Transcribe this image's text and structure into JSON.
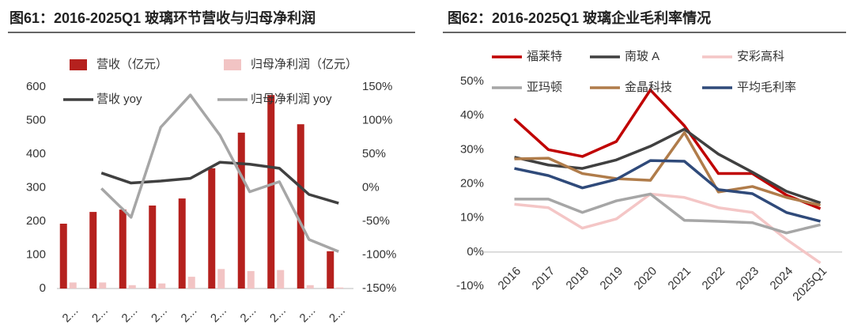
{
  "chart_data": [
    {
      "type": "bar",
      "title": "图61：2016-2025Q1 玻璃环节营收与归母净利润",
      "categories": [
        "2...",
        "2...",
        "2...",
        "2...",
        "2...",
        "2...",
        "2...",
        "2...",
        "2...",
        "2..."
      ],
      "series": [
        {
          "name": "营收（亿元）",
          "type": "bar",
          "color": "#b5211e",
          "values": [
            193,
            228,
            235,
            247,
            268,
            358,
            464,
            576,
            489,
            111
          ]
        },
        {
          "name": "归母净利润（亿元）",
          "type": "bar",
          "color": "#f2c4c4",
          "values": [
            18,
            18,
            10,
            15,
            35,
            58,
            52,
            55,
            10,
            3
          ]
        },
        {
          "name": "营收 yoy",
          "type": "line",
          "axis": "y2",
          "color": "#404040",
          "values": [
            null,
            22,
            7,
            10,
            14,
            38,
            35,
            29,
            -10,
            -23
          ]
        },
        {
          "name": "归母净利润 yoy",
          "type": "line",
          "axis": "y2",
          "color": "#a6a6a6",
          "values": [
            null,
            -1,
            -44,
            90,
            138,
            78,
            -6,
            9,
            -77,
            -95
          ]
        }
      ],
      "ylim": [
        0,
        600
      ],
      "yticks": [
        0,
        100,
        200,
        300,
        400,
        500,
        600
      ],
      "y2lim": [
        -150,
        150
      ],
      "y2ticks": [
        {
          "value": -150,
          "label": "-150%"
        },
        {
          "value": -100,
          "label": "-100%"
        },
        {
          "value": -50,
          "label": "-50%"
        },
        {
          "value": 0,
          "label": "0%"
        },
        {
          "value": 50,
          "label": "50%"
        },
        {
          "value": 100,
          "label": "100%"
        },
        {
          "value": 150,
          "label": "150%"
        }
      ]
    },
    {
      "type": "line",
      "title": "图62：2016-2025Q1 玻璃企业毛利率情况",
      "categories": [
        "2016",
        "2017",
        "2018",
        "2019",
        "2020",
        "2021",
        "2022",
        "2023",
        "2024",
        "2025Q1"
      ],
      "series": [
        {
          "name": "福莱特",
          "color": "#c00000",
          "values": [
            39,
            30,
            28,
            32.4,
            47.5,
            37,
            23,
            23,
            16.7,
            12.7
          ]
        },
        {
          "name": "南玻 A",
          "color": "#404040",
          "values": [
            27.8,
            25.5,
            24.5,
            27,
            31,
            36,
            28.7,
            23.4,
            17.8,
            14.4
          ]
        },
        {
          "name": "安彩高科",
          "color": "#f4c6c6",
          "values": [
            14,
            13,
            7,
            9.7,
            17,
            16,
            13,
            11.6,
            3.7,
            -3.2
          ]
        },
        {
          "name": "亚玛顿",
          "color": "#a6a6a6",
          "values": [
            15.5,
            15.5,
            11.6,
            15,
            17,
            9.3,
            9,
            8.6,
            5.6,
            8
          ]
        },
        {
          "name": "金晶科技",
          "color": "#b07c4a",
          "values": [
            27.3,
            27.5,
            23,
            21.5,
            21,
            35,
            17.6,
            19.2,
            16,
            13.7
          ]
        },
        {
          "name": "平均毛利率",
          "color": "#2f4a7a",
          "values": [
            24.5,
            22.4,
            18.8,
            21.3,
            26.8,
            26.6,
            18.3,
            17.1,
            11.6,
            9
          ]
        }
      ],
      "ylim": [
        -10,
        50
      ],
      "yticks": [
        {
          "value": -10,
          "label": "-10%"
        },
        {
          "value": 0,
          "label": "0%"
        },
        {
          "value": 10,
          "label": "10%"
        },
        {
          "value": 20,
          "label": "20%"
        },
        {
          "value": 30,
          "label": "30%"
        },
        {
          "value": 40,
          "label": "40%"
        },
        {
          "value": 50,
          "label": "50%"
        }
      ]
    }
  ]
}
